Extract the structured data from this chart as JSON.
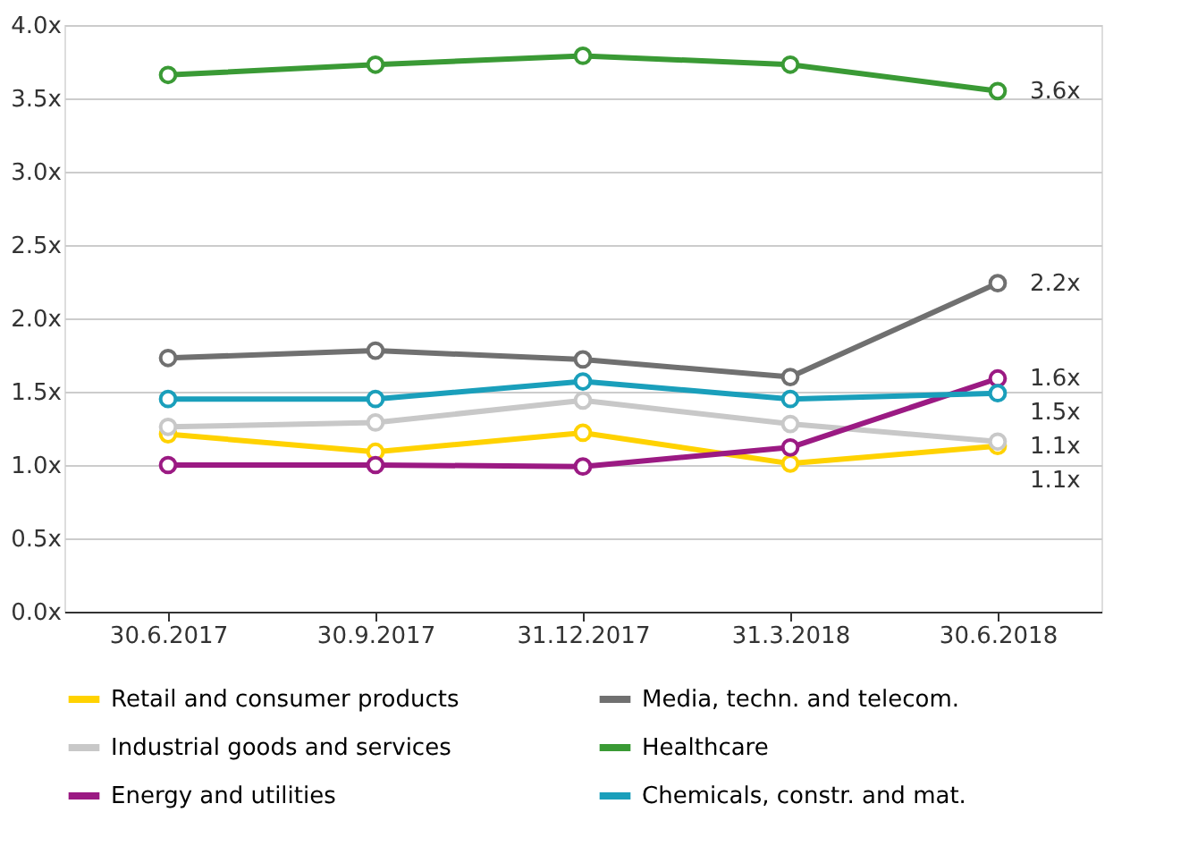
{
  "chart_data": {
    "type": "line",
    "categories": [
      "30.6.2017",
      "30.9.2017",
      "31.12.2017",
      "31.3.2018",
      "30.6.2018"
    ],
    "series": [
      {
        "name": "Retail and consumer products",
        "color": "#ffd200",
        "values": [
          1.21,
          1.09,
          1.22,
          1.01,
          1.13
        ]
      },
      {
        "name": "Media, techn. and telecom.",
        "color": "#707070",
        "values": [
          1.73,
          1.78,
          1.72,
          1.6,
          2.24
        ]
      },
      {
        "name": "Industrial goods and services",
        "color": "#c8c8c8",
        "values": [
          1.26,
          1.29,
          1.44,
          1.28,
          1.16
        ]
      },
      {
        "name": "Healthcare",
        "color": "#3a9a35",
        "values": [
          3.66,
          3.73,
          3.79,
          3.73,
          3.55
        ]
      },
      {
        "name": "Energy and utilities",
        "color": "#9b1a83",
        "values": [
          1.0,
          1.0,
          0.99,
          1.12,
          1.59
        ]
      },
      {
        "name": "Chemicals, constr. and mat.",
        "color": "#1a9fbb",
        "values": [
          1.45,
          1.45,
          1.57,
          1.45,
          1.49
        ]
      }
    ],
    "ylim": [
      0,
      4
    ],
    "yticks": [
      {
        "value": 0,
        "label": "0.0x"
      },
      {
        "value": 0.5,
        "label": "0.5x"
      },
      {
        "value": 1,
        "label": "1.0x"
      },
      {
        "value": 1.5,
        "label": "1.5x"
      },
      {
        "value": 2,
        "label": "2.0x"
      },
      {
        "value": 2.5,
        "label": "2.5x"
      },
      {
        "value": 3,
        "label": "3.0x"
      },
      {
        "value": 3.5,
        "label": "3.5x"
      },
      {
        "value": 4,
        "label": "4.0x"
      }
    ],
    "annotations": [
      "3.6x",
      "2.2x",
      "1.6x",
      "1.5x",
      "1.1x",
      "1.1x"
    ],
    "grid": "y",
    "legend": "bottom",
    "marker": "circle",
    "line_style": "solid"
  }
}
